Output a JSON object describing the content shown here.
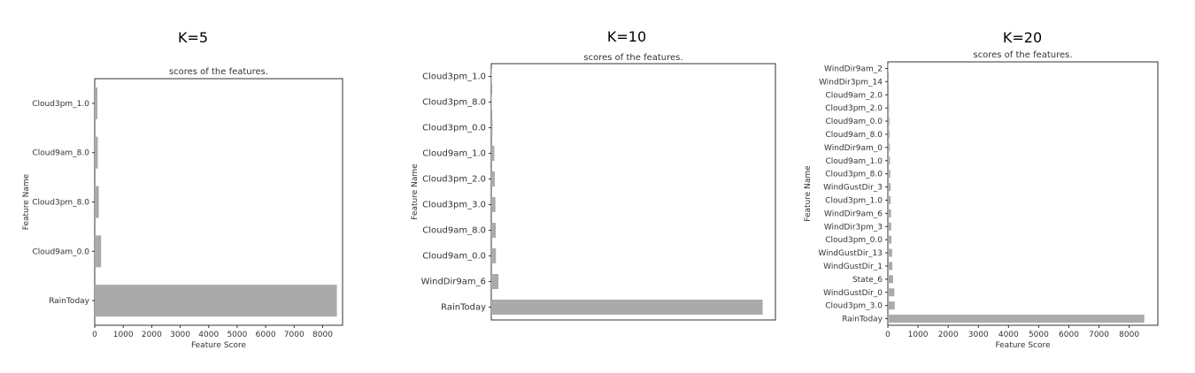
{
  "chart_data": [
    {
      "type": "bar",
      "orientation": "horizontal",
      "heading": "K=5",
      "title": "scores of the features.",
      "xlabel": "Feature Score",
      "ylabel": "Feature Name",
      "xlim": [
        0,
        8700
      ],
      "xticks": [
        0,
        1000,
        2000,
        3000,
        4000,
        5000,
        6000,
        7000,
        8000
      ],
      "categories": [
        "Cloud3pm_1.0",
        "Cloud9am_8.0",
        "Cloud3pm_8.0",
        "Cloud9am_0.0",
        "RainToday"
      ],
      "values": [
        95,
        110,
        145,
        225,
        8500
      ],
      "bar_color": "#aaaaaa",
      "grid": false
    },
    {
      "type": "bar",
      "orientation": "horizontal",
      "heading": "K=10",
      "title": "scores of the features.",
      "xlabel": "",
      "ylabel": "Feature Name",
      "xlim": [
        0,
        8900
      ],
      "xticks": [],
      "categories": [
        "Cloud3pm_1.0",
        "Cloud3pm_8.0",
        "Cloud3pm_0.0",
        "Cloud9am_1.0",
        "Cloud3pm_2.0",
        "Cloud3pm_3.0",
        "Cloud9am_8.0",
        "Cloud9am_0.0",
        "WindDir9am_6",
        "RainToday"
      ],
      "values": [
        10,
        20,
        40,
        95,
        110,
        130,
        140,
        145,
        225,
        8500
      ],
      "bar_color": "#aaaaaa",
      "grid": false
    },
    {
      "type": "bar",
      "orientation": "horizontal",
      "heading": "K=20",
      "title": "scores of the features.",
      "xlabel": "Feature Score",
      "ylabel": "Feature Name",
      "xlim": [
        0,
        8950
      ],
      "xticks": [
        0,
        1000,
        2000,
        3000,
        4000,
        5000,
        6000,
        7000,
        8000
      ],
      "categories": [
        "WindDir9am_2",
        "WindDir3pm_14",
        "Cloud9am_2.0",
        "Cloud3pm_2.0",
        "Cloud9am_0.0",
        "Cloud9am_8.0",
        "WindDir9am_0",
        "Cloud9am_1.0",
        "Cloud3pm_8.0",
        "WindGustDir_3",
        "Cloud3pm_1.0",
        "WindDir9am_6",
        "WindDir3pm_3",
        "Cloud3pm_0.0",
        "WindGustDir_13",
        "WindGustDir_1",
        "State_6",
        "WindGustDir_0",
        "Cloud3pm_3.0",
        "RainToday"
      ],
      "values": [
        20,
        30,
        40,
        45,
        55,
        60,
        65,
        70,
        80,
        90,
        95,
        105,
        110,
        115,
        140,
        150,
        175,
        215,
        230,
        8500
      ],
      "bar_color": "#aaaaaa",
      "grid": false
    }
  ]
}
